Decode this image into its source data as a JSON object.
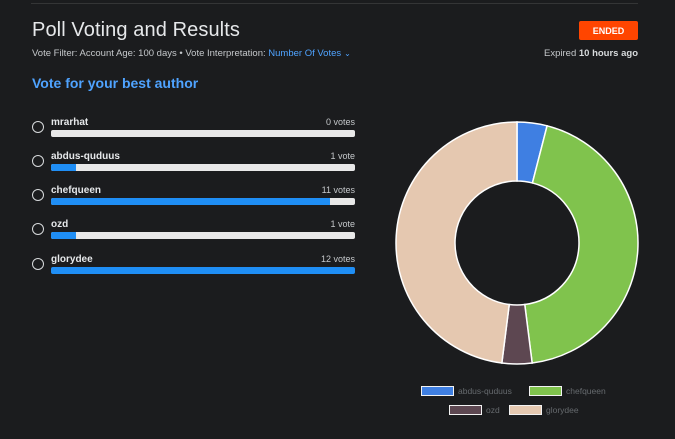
{
  "header": {
    "title": "Poll Voting and Results",
    "status_badge": "ENDED",
    "filter_label": "Vote Filter:",
    "filter_value": "Account Age: 100 days",
    "separator": "•",
    "interpretation_label": "Vote Interpretation:",
    "interpretation_value": "Number Of Votes",
    "expired_prefix": "Expired",
    "expired_value": "10 hours ago"
  },
  "poll": {
    "question": "Vote for your best author",
    "options": [
      {
        "name": "mrarhat",
        "votes_label": "0 votes",
        "votes": 0
      },
      {
        "name": "abdus-quduus",
        "votes_label": "1 vote",
        "votes": 1
      },
      {
        "name": "chefqueen",
        "votes_label": "11 votes",
        "votes": 11
      },
      {
        "name": "ozd",
        "votes_label": "1 vote",
        "votes": 1
      },
      {
        "name": "glorydee",
        "votes_label": "12 votes",
        "votes": 12
      }
    ]
  },
  "chart_data": {
    "type": "pie",
    "categories": [
      "abdus-quduus",
      "chefqueen",
      "ozd",
      "glorydee"
    ],
    "values": [
      1,
      11,
      1,
      12
    ],
    "colors": [
      "#3f7fe2",
      "#80c34d",
      "#5d4751",
      "#e5c8b0"
    ],
    "legend": "bottom"
  },
  "colors": {
    "accent": "#4fa3ff",
    "badge": "#ff4500",
    "bar_fill": "#1f8ef5",
    "bar_track": "#e8e8e8"
  }
}
